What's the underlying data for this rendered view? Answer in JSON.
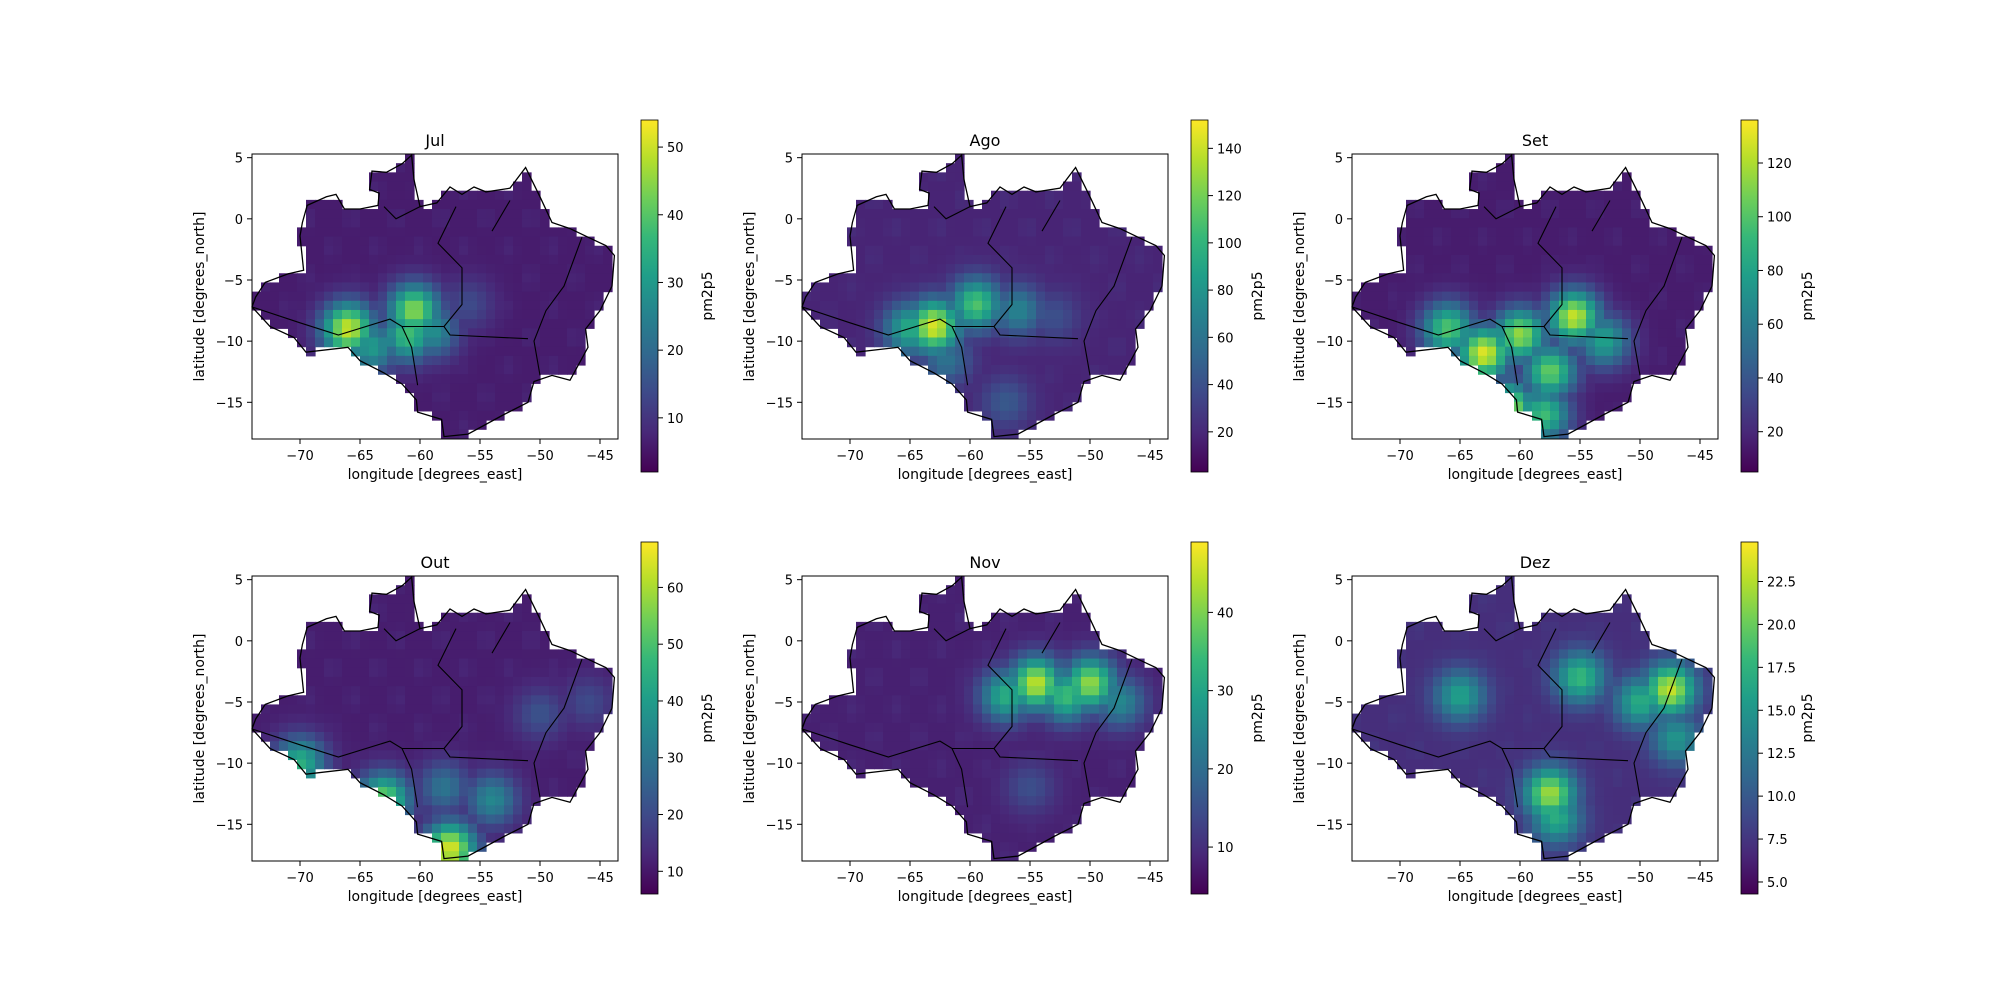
{
  "figure": {
    "background": "#ffffff",
    "colormap": "viridis",
    "colormap_stops": [
      "#440154",
      "#482878",
      "#3e4989",
      "#31688e",
      "#26828e",
      "#1f9e89",
      "#35b779",
      "#6ece58",
      "#b5de2b",
      "#fde725"
    ]
  },
  "chart_data": [
    {
      "type": "heatmap",
      "title": "Jul",
      "xlabel": "longitude [degrees_east]",
      "ylabel": "latitude [degrees_north]",
      "xlim": [
        -74,
        -43.5
      ],
      "ylim": [
        -18,
        5.3
      ],
      "xticks": [
        -70,
        -65,
        -60,
        -55,
        -50,
        -45
      ],
      "yticks": [
        5,
        0,
        -5,
        -10,
        -15
      ],
      "colorbar": {
        "label": "pm2p5",
        "min": 2,
        "max": 54,
        "ticks": [
          10,
          20,
          30,
          40,
          50
        ]
      },
      "background_value": 6,
      "hotspots": [
        {
          "lon": -66,
          "lat": -9,
          "value": 50
        },
        {
          "lon": -60.5,
          "lat": -7.5,
          "value": 45
        },
        {
          "lon": -61,
          "lat": -9.5,
          "value": 38
        },
        {
          "lon": -64,
          "lat": -10.5,
          "value": 30
        },
        {
          "lon": -59,
          "lat": -9.2,
          "value": 28
        },
        {
          "lon": -56,
          "lat": -7,
          "value": 14
        }
      ]
    },
    {
      "type": "heatmap",
      "title": "Ago",
      "xlabel": "longitude [degrees_east]",
      "ylabel": "latitude [degrees_north]",
      "xlim": [
        -74,
        -43.5
      ],
      "ylim": [
        -18,
        5.3
      ],
      "xticks": [
        -70,
        -65,
        -60,
        -55,
        -50,
        -45
      ],
      "yticks": [
        5,
        0,
        -5,
        -10,
        -15
      ],
      "colorbar": {
        "label": "pm2p5",
        "min": 3,
        "max": 152,
        "ticks": [
          20,
          40,
          60,
          80,
          100,
          120,
          140
        ]
      },
      "background_value": 18,
      "hotspots": [
        {
          "lon": -63,
          "lat": -8.8,
          "value": 145
        },
        {
          "lon": -59.5,
          "lat": -7,
          "value": 110
        },
        {
          "lon": -65,
          "lat": -9,
          "value": 95
        },
        {
          "lon": -56,
          "lat": -7.5,
          "value": 70
        },
        {
          "lon": -62,
          "lat": -11.5,
          "value": 60
        },
        {
          "lon": -57,
          "lat": -15,
          "value": 45
        },
        {
          "lon": -53,
          "lat": -8,
          "value": 40
        }
      ]
    },
    {
      "type": "heatmap",
      "title": "Set",
      "xlabel": "longitude [degrees_east]",
      "ylabel": "latitude [degrees_north]",
      "xlim": [
        -74,
        -43.5
      ],
      "ylim": [
        -18,
        5.3
      ],
      "xticks": [
        -70,
        -65,
        -60,
        -55,
        -50,
        -45
      ],
      "yticks": [
        5,
        0,
        -5,
        -10,
        -15
      ],
      "colorbar": {
        "label": "pm2p5",
        "min": 5,
        "max": 136,
        "ticks": [
          20,
          40,
          60,
          80,
          100,
          120
        ]
      },
      "background_value": 15,
      "hotspots": [
        {
          "lon": -63,
          "lat": -11,
          "value": 130
        },
        {
          "lon": -55.5,
          "lat": -8,
          "value": 125
        },
        {
          "lon": -60,
          "lat": -9.5,
          "value": 115
        },
        {
          "lon": -57.5,
          "lat": -12.5,
          "value": 105
        },
        {
          "lon": -66,
          "lat": -9,
          "value": 100
        },
        {
          "lon": -61,
          "lat": -15.5,
          "value": 120
        },
        {
          "lon": -58,
          "lat": -16,
          "value": 95
        },
        {
          "lon": -53,
          "lat": -10,
          "value": 80
        }
      ]
    },
    {
      "type": "heatmap",
      "title": "Out",
      "xlabel": "longitude [degrees_east]",
      "ylabel": "latitude [degrees_north]",
      "xlim": [
        -74,
        -43.5
      ],
      "ylim": [
        -18,
        5.3
      ],
      "xticks": [
        -70,
        -65,
        -60,
        -55,
        -50,
        -45
      ],
      "yticks": [
        5,
        0,
        -5,
        -10,
        -15
      ],
      "colorbar": {
        "label": "pm2p5",
        "min": 6,
        "max": 68,
        "ticks": [
          10,
          20,
          30,
          40,
          50,
          60
        ]
      },
      "background_value": 11,
      "hotspots": [
        {
          "lon": -57.5,
          "lat": -17,
          "value": 65
        },
        {
          "lon": -63,
          "lat": -13,
          "value": 55
        },
        {
          "lon": -70,
          "lat": -10,
          "value": 45
        },
        {
          "lon": -54,
          "lat": -13,
          "value": 35
        },
        {
          "lon": -58,
          "lat": -12,
          "value": 30
        },
        {
          "lon": -50,
          "lat": -6,
          "value": 22
        },
        {
          "lon": -46,
          "lat": -5,
          "value": 20
        }
      ]
    },
    {
      "type": "heatmap",
      "title": "Nov",
      "xlabel": "longitude [degrees_east]",
      "ylabel": "latitude [degrees_north]",
      "xlim": [
        -74,
        -43.5
      ],
      "ylim": [
        -18,
        5.3
      ],
      "xticks": [
        -70,
        -65,
        -60,
        -55,
        -50,
        -45
      ],
      "yticks": [
        5,
        0,
        -5,
        -10,
        -15
      ],
      "colorbar": {
        "label": "pm2p5",
        "min": 4,
        "max": 49,
        "ticks": [
          10,
          20,
          30,
          40
        ]
      },
      "background_value": 8,
      "hotspots": [
        {
          "lon": -54.5,
          "lat": -3.5,
          "value": 45
        },
        {
          "lon": -50,
          "lat": -3.5,
          "value": 42
        },
        {
          "lon": -52,
          "lat": -4.5,
          "value": 35
        },
        {
          "lon": -57,
          "lat": -4.5,
          "value": 32
        },
        {
          "lon": -47.5,
          "lat": -5,
          "value": 25
        },
        {
          "lon": -55,
          "lat": -12,
          "value": 15
        }
      ]
    },
    {
      "type": "heatmap",
      "title": "Dez",
      "xlabel": "longitude [degrees_east]",
      "ylabel": "latitude [degrees_north]",
      "xlim": [
        -74,
        -43.5
      ],
      "ylim": [
        -18,
        5.3
      ],
      "xticks": [
        -70,
        -65,
        -60,
        -55,
        -50,
        -45
      ],
      "yticks": [
        5,
        0,
        -5,
        -10,
        -15
      ],
      "colorbar": {
        "label": "pm2p5",
        "min": 4.3,
        "max": 24.8,
        "ticks": [
          5.0,
          7.5,
          10.0,
          12.5,
          15.0,
          17.5,
          20.0,
          22.5
        ]
      },
      "background_value": 7,
      "hotspots": [
        {
          "lon": -47.5,
          "lat": -4,
          "value": 23
        },
        {
          "lon": -57.5,
          "lat": -12.5,
          "value": 22
        },
        {
          "lon": -55,
          "lat": -3,
          "value": 18
        },
        {
          "lon": -50,
          "lat": -5,
          "value": 17
        },
        {
          "lon": -65,
          "lat": -4.5,
          "value": 16
        },
        {
          "lon": -57,
          "lat": -14.5,
          "value": 17
        },
        {
          "lon": -47,
          "lat": -8,
          "value": 15
        }
      ]
    }
  ]
}
